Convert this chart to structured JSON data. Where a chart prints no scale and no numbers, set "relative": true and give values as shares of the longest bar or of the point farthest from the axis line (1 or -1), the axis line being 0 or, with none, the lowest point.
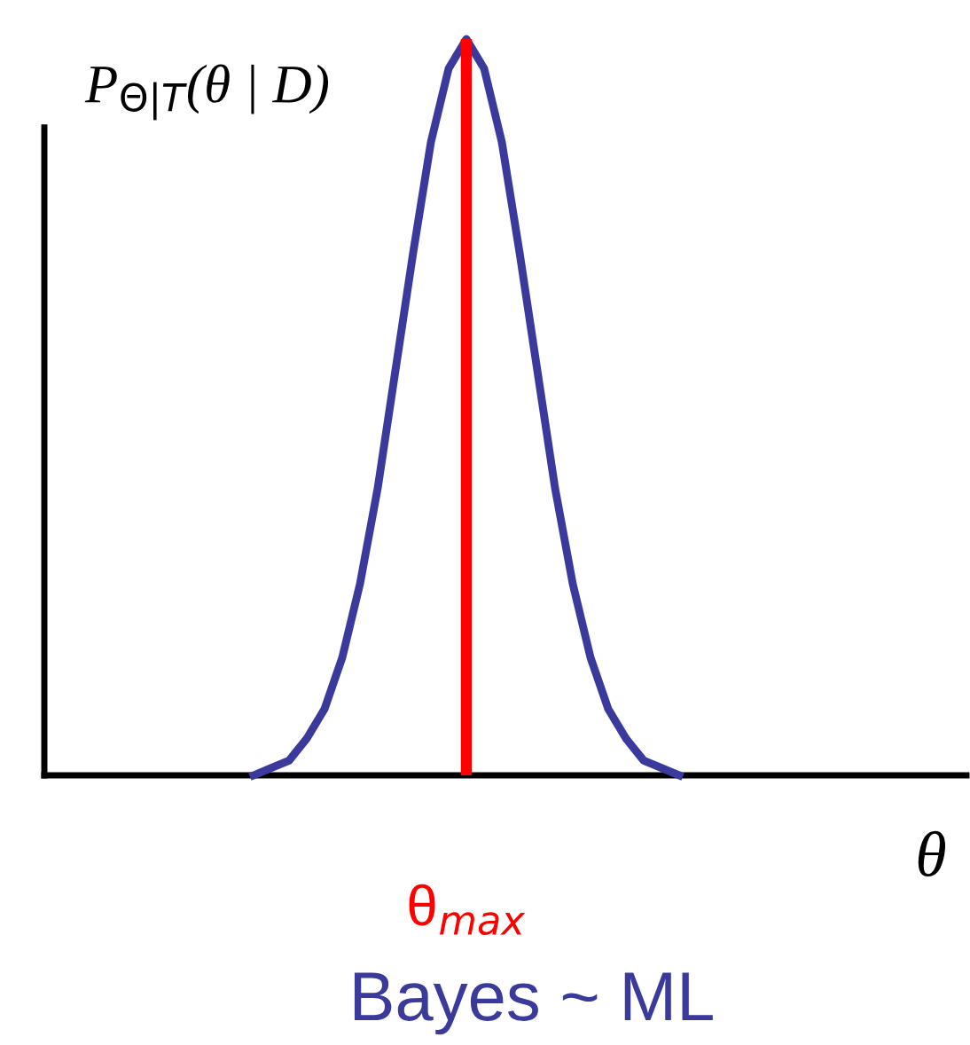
{
  "chart_data": {
    "type": "line",
    "relative": true,
    "ylabel": "P$_{Θ|T}$(θ | D)",
    "xlabel": "θ",
    "annotations": [
      "Bayes ~ ML"
    ],
    "categories": [
      null,
      null,
      null,
      null,
      null,
      null,
      null,
      null,
      null,
      null,
      null,
      null,
      null,
      null,
      null,
      null,
      null,
      null,
      null,
      null,
      null,
      null,
      null,
      null,
      null
    ],
    "series": [
      {
        "color": "#3a3a9c",
        "values": [
          0,
          0.01,
          0.02,
          0.05,
          0.09,
          0.16,
          0.26,
          0.39,
          0.55,
          0.71,
          0.86,
          0.96,
          1,
          0.96,
          0.86,
          0.71,
          0.55,
          0.39,
          0.26,
          0.16,
          0.09,
          0.05,
          0.02,
          0.01,
          0
        ]
      }
    ],
    "ref_lines": [
      {
        "axis": "x",
        "label": "θ$_{max}$",
        "color": "#ff0000",
        "line_style": "solid"
      }
    ],
    "legend": false,
    "marker": "none",
    "line_style": "solid"
  }
}
